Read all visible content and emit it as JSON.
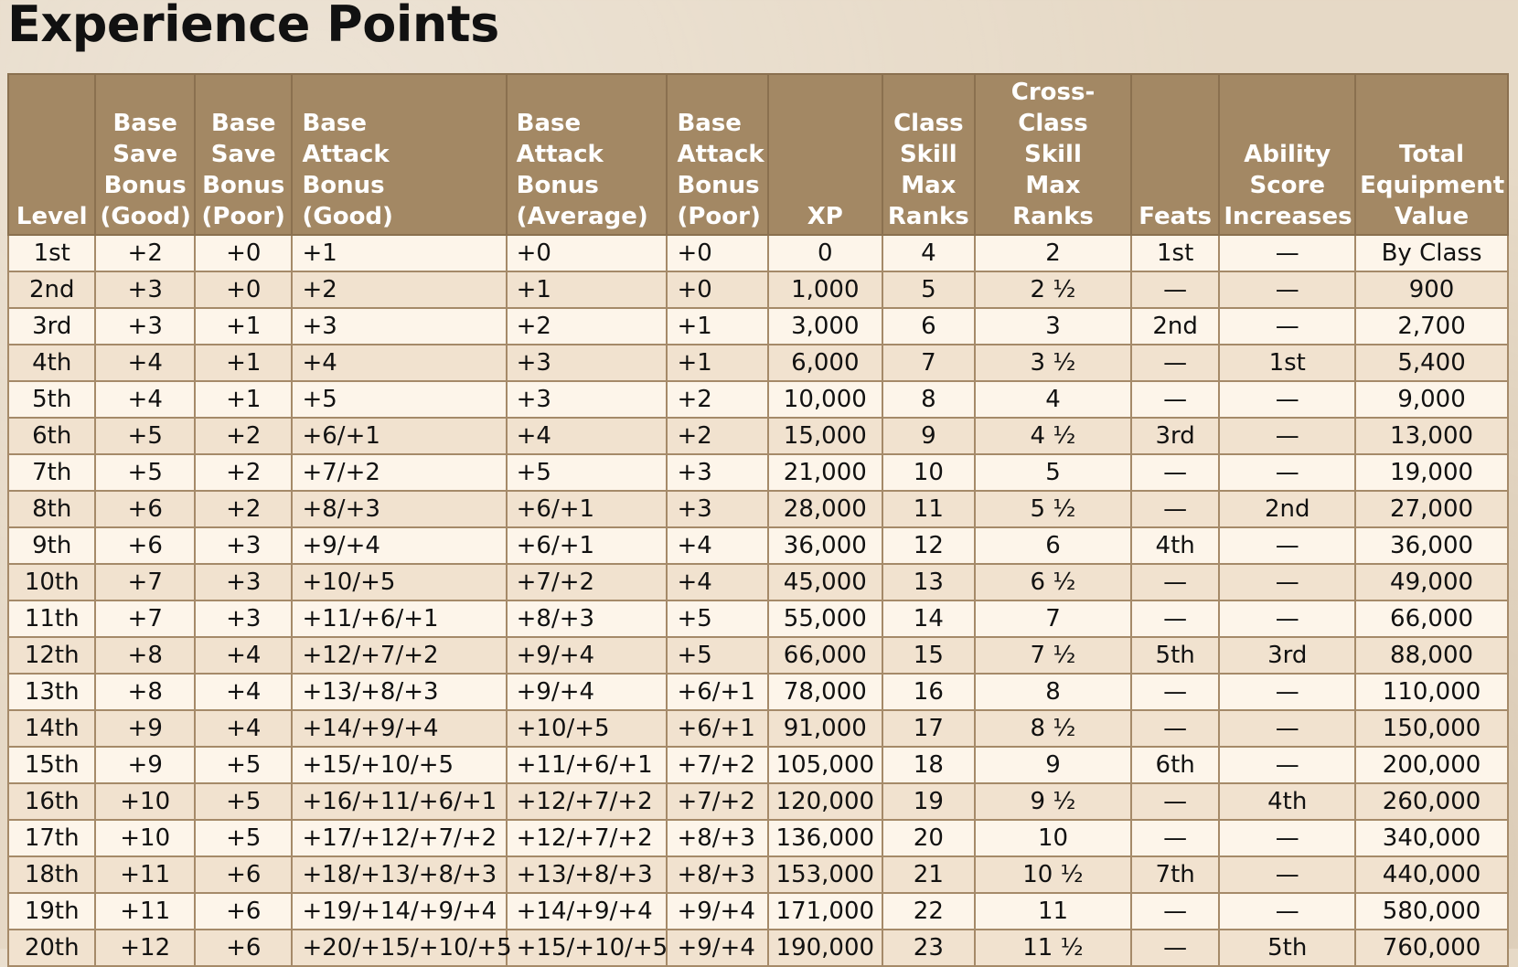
{
  "title": "Experience Points",
  "columns": [
    "Level",
    "Base Save Bonus (Good)",
    "Base Save Bonus (Poor)",
    "Base Attack Bonus (Good)",
    "Base Attack Bonus (Average)",
    "Base Attack Bonus (Poor)",
    "XP",
    "Class Skill Max Ranks",
    "Cross-Class Skill Max Ranks",
    "Feats",
    "Ability Score Increases",
    "Total Equipment Value"
  ],
  "header_lines": [
    [
      "Level"
    ],
    [
      "Base",
      "Save",
      "Bonus",
      "(Good)"
    ],
    [
      "Base",
      "Save",
      "Bonus",
      "(Poor)"
    ],
    [
      "Base",
      "Attack",
      "Bonus",
      "(Good)"
    ],
    [
      "Base",
      "Attack",
      "Bonus",
      "(Average)"
    ],
    [
      "Base",
      "Attack",
      "Bonus",
      "(Poor)"
    ],
    [
      "XP"
    ],
    [
      "Class",
      "Skill",
      "Max",
      "Ranks"
    ],
    [
      "Cross-Class",
      "Skill",
      "Max",
      "Ranks"
    ],
    [
      "Feats"
    ],
    [
      "Ability",
      "Score",
      "Increases"
    ],
    [
      "Total",
      "Equipment",
      "Value"
    ]
  ],
  "rows": [
    [
      "1st",
      "+2",
      "+0",
      "+1",
      "+0",
      "+0",
      "0",
      "4",
      "2",
      "1st",
      "—",
      "By Class"
    ],
    [
      "2nd",
      "+3",
      "+0",
      "+2",
      "+1",
      "+0",
      "1,000",
      "5",
      "2 ½",
      "—",
      "—",
      "900"
    ],
    [
      "3rd",
      "+3",
      "+1",
      "+3",
      "+2",
      "+1",
      "3,000",
      "6",
      "3",
      "2nd",
      "—",
      "2,700"
    ],
    [
      "4th",
      "+4",
      "+1",
      "+4",
      "+3",
      "+1",
      "6,000",
      "7",
      "3 ½",
      "—",
      "1st",
      "5,400"
    ],
    [
      "5th",
      "+4",
      "+1",
      "+5",
      "+3",
      "+2",
      "10,000",
      "8",
      "4",
      "—",
      "—",
      "9,000"
    ],
    [
      "6th",
      "+5",
      "+2",
      "+6/+1",
      "+4",
      "+2",
      "15,000",
      "9",
      "4 ½",
      "3rd",
      "—",
      "13,000"
    ],
    [
      "7th",
      "+5",
      "+2",
      "+7/+2",
      "+5",
      "+3",
      "21,000",
      "10",
      "5",
      "—",
      "—",
      "19,000"
    ],
    [
      "8th",
      "+6",
      "+2",
      "+8/+3",
      "+6/+1",
      "+3",
      "28,000",
      "11",
      "5 ½",
      "—",
      "2nd",
      "27,000"
    ],
    [
      "9th",
      "+6",
      "+3",
      "+9/+4",
      "+6/+1",
      "+4",
      "36,000",
      "12",
      "6",
      "4th",
      "—",
      "36,000"
    ],
    [
      "10th",
      "+7",
      "+3",
      "+10/+5",
      "+7/+2",
      "+4",
      "45,000",
      "13",
      "6 ½",
      "—",
      "—",
      "49,000"
    ],
    [
      "11th",
      "+7",
      "+3",
      "+11/+6/+1",
      "+8/+3",
      "+5",
      "55,000",
      "14",
      "7",
      "—",
      "—",
      "66,000"
    ],
    [
      "12th",
      "+8",
      "+4",
      "+12/+7/+2",
      "+9/+4",
      "+5",
      "66,000",
      "15",
      "7 ½",
      "5th",
      "3rd",
      "88,000"
    ],
    [
      "13th",
      "+8",
      "+4",
      "+13/+8/+3",
      "+9/+4",
      "+6/+1",
      "78,000",
      "16",
      "8",
      "—",
      "—",
      "110,000"
    ],
    [
      "14th",
      "+9",
      "+4",
      "+14/+9/+4",
      "+10/+5",
      "+6/+1",
      "91,000",
      "17",
      "8 ½",
      "—",
      "—",
      "150,000"
    ],
    [
      "15th",
      "+9",
      "+5",
      "+15/+10/+5",
      "+11/+6/+1",
      "+7/+2",
      "105,000",
      "18",
      "9",
      "6th",
      "—",
      "200,000"
    ],
    [
      "16th",
      "+10",
      "+5",
      "+16/+11/+6/+1",
      "+12/+7/+2",
      "+7/+2",
      "120,000",
      "19",
      "9 ½",
      "—",
      "4th",
      "260,000"
    ],
    [
      "17th",
      "+10",
      "+5",
      "+17/+12/+7/+2",
      "+12/+7/+2",
      "+8/+3",
      "136,000",
      "20",
      "10",
      "—",
      "—",
      "340,000"
    ],
    [
      "18th",
      "+11",
      "+6",
      "+18/+13/+8/+3",
      "+13/+8/+3",
      "+8/+3",
      "153,000",
      "21",
      "10 ½",
      "7th",
      "—",
      "440,000"
    ],
    [
      "19th",
      "+11",
      "+6",
      "+19/+14/+9/+4",
      "+14/+9/+4",
      "+9/+4",
      "171,000",
      "22",
      "11",
      "—",
      "—",
      "580,000"
    ],
    [
      "20th",
      "+12",
      "+6",
      "+20/+15/+10/+5",
      "+15/+10/+5",
      "+9/+4",
      "190,000",
      "23",
      "11 ½",
      "—",
      "5th",
      "760,000"
    ]
  ],
  "colors": {
    "header_bg": "#a38864",
    "header_text": "#ffffff",
    "row_odd": "#fdf5ea",
    "row_even": "#f1e2cf",
    "border": "#a58a69"
  }
}
